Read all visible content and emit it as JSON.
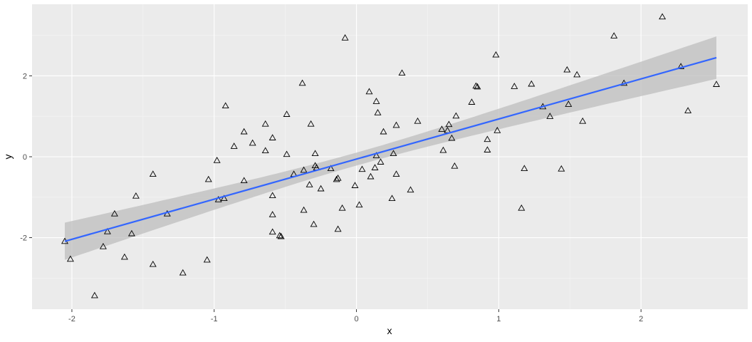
{
  "chart_data": {
    "type": "scatter",
    "title": "",
    "xlabel": "x",
    "ylabel": "y",
    "xlim": [
      -2.28,
      2.75
    ],
    "ylim": [
      -3.77,
      3.77
    ],
    "x_ticks": [
      -2,
      -1,
      0,
      1,
      2
    ],
    "x_tick_labels": [
      "-2",
      "-1",
      "0",
      "1",
      "2"
    ],
    "y_ticks": [
      -2,
      0,
      2
    ],
    "y_tick_labels": [
      "-2",
      "0",
      "2"
    ],
    "grid": true,
    "legend": "none",
    "marker": "open-triangle",
    "colors": {
      "panel_background": "#ebebeb",
      "grid_major": "#ffffff",
      "grid_minor": "#f5f5f5",
      "points": "#000000",
      "fit_line": "#3366ff",
      "confidence_band": "#bdbdbd"
    },
    "series": [
      {
        "x": [
          -2.05,
          -2.01,
          -1.84,
          -1.78,
          -1.75,
          -1.7,
          -1.63,
          -1.58,
          -1.55,
          -1.43,
          -1.43,
          -1.33,
          -1.22,
          -1.05,
          -1.04,
          -0.98,
          -0.97,
          -0.93,
          -0.92,
          -0.86,
          -0.79,
          -0.79,
          -0.73,
          -0.64,
          -0.64,
          -0.59,
          -0.59,
          -0.59,
          -0.59,
          -0.54,
          -0.53,
          -0.49,
          -0.49,
          -0.44,
          -0.38,
          -0.37,
          -0.37,
          -0.33,
          -0.32,
          -0.3,
          -0.29,
          -0.29,
          -0.28,
          -0.25,
          -0.18,
          -0.14,
          -0.13,
          -0.13,
          -0.1,
          -0.08,
          -0.01,
          0.02,
          0.04,
          0.09,
          0.1,
          0.13,
          0.14,
          0.14,
          0.15,
          0.17,
          0.19,
          0.25,
          0.26,
          0.28,
          0.28,
          0.32,
          0.38,
          0.43,
          0.6,
          0.61,
          0.64,
          0.65,
          0.67,
          0.69,
          0.7,
          0.81,
          0.84,
          0.85,
          0.92,
          0.92,
          0.98,
          0.99,
          1.11,
          1.16,
          1.18,
          1.23,
          1.31,
          1.36,
          1.44,
          1.48,
          1.49,
          1.55,
          1.59,
          1.81,
          1.88,
          2.15,
          2.28,
          2.33,
          2.53
        ],
        "y": [
          -2.09,
          -2.53,
          -3.43,
          -2.22,
          -1.85,
          -1.41,
          -2.48,
          -1.9,
          -0.97,
          -2.66,
          -0.43,
          -1.41,
          -2.87,
          -2.55,
          -0.56,
          -0.09,
          -1.06,
          -1.03,
          1.26,
          0.26,
          0.62,
          -0.59,
          0.34,
          0.81,
          0.15,
          -0.96,
          0.47,
          -1.43,
          -1.86,
          -1.95,
          -1.97,
          1.05,
          0.06,
          -0.43,
          1.82,
          -0.33,
          -1.32,
          -0.69,
          0.81,
          -1.67,
          0.08,
          -0.22,
          -0.27,
          -0.79,
          -0.29,
          -0.56,
          -0.53,
          -1.79,
          -1.27,
          2.94,
          -0.71,
          -1.19,
          -0.31,
          1.61,
          -0.49,
          -0.27,
          0.03,
          1.37,
          1.09,
          -0.13,
          0.62,
          -1.03,
          0.08,
          -0.43,
          0.78,
          2.07,
          -0.82,
          0.88,
          0.68,
          0.16,
          0.65,
          0.8,
          0.46,
          -0.23,
          1.01,
          1.35,
          1.75,
          1.73,
          0.43,
          0.17,
          2.52,
          0.65,
          1.74,
          -1.27,
          -0.29,
          1.8,
          1.24,
          1.0,
          -0.3,
          2.15,
          1.3,
          2.03,
          0.88,
          2.99,
          1.82,
          3.46,
          2.23,
          1.14,
          1.79
        ]
      }
    ],
    "fit": {
      "method": "lm",
      "x_range": [
        -2.05,
        2.53
      ],
      "y_range": [
        -2.09,
        2.45
      ],
      "band_upper": [
        -1.63,
        2.98
      ],
      "band_lower": [
        -2.55,
        1.93
      ],
      "band_center_x": 0.0,
      "band_center_halfwidth": 0.16
    }
  }
}
